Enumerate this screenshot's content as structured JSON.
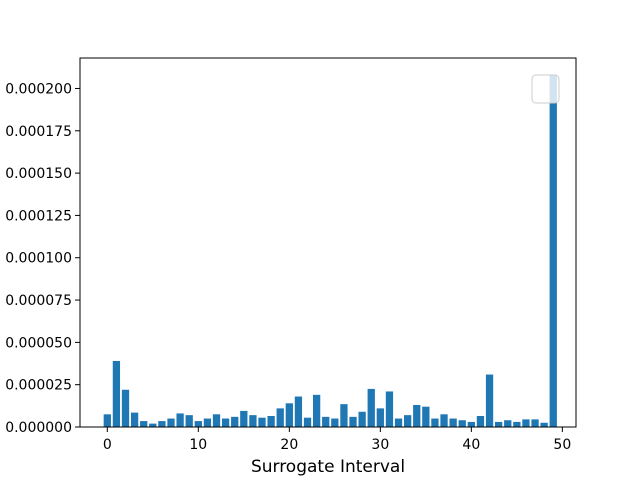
{
  "chart_data": {
    "type": "bar",
    "xlabel": "Surrogate Interval",
    "ylabel": "",
    "title": "",
    "xlim": [
      -3,
      51.5
    ],
    "ylim": [
      0,
      0.000218
    ],
    "xticks": [
      0,
      10,
      20,
      30,
      40,
      50
    ],
    "xtick_labels": [
      "0",
      "10",
      "20",
      "30",
      "40",
      "50"
    ],
    "yticks": [
      0,
      2.5e-05,
      5e-05,
      7.5e-05,
      0.0001,
      0.000125,
      0.00015,
      0.000175,
      0.0002
    ],
    "ytick_labels": [
      "0.000000",
      "0.000025",
      "0.000050",
      "0.000075",
      "0.000100",
      "0.000125",
      "0.000150",
      "0.000175",
      "0.000200"
    ],
    "grid": false,
    "legend": {
      "placement": "top-right",
      "entries": []
    },
    "bar_color": "#1f77b4",
    "x": [
      0,
      1,
      2,
      3,
      4,
      5,
      6,
      7,
      8,
      9,
      10,
      11,
      12,
      13,
      14,
      15,
      16,
      17,
      18,
      19,
      20,
      21,
      22,
      23,
      24,
      25,
      26,
      27,
      28,
      29,
      30,
      31,
      32,
      33,
      34,
      35,
      36,
      37,
      38,
      39,
      40,
      41,
      42,
      43,
      44,
      45,
      46,
      47,
      48,
      49
    ],
    "values": [
      7.5e-06,
      3.9e-05,
      2.2e-05,
      8.5e-06,
      3.5e-06,
      2e-06,
      3.5e-06,
      5e-06,
      8e-06,
      7e-06,
      3.5e-06,
      5e-06,
      7.5e-06,
      5e-06,
      6e-06,
      9.5e-06,
      7e-06,
      5.5e-06,
      6.5e-06,
      1.1e-05,
      1.4e-05,
      1.8e-05,
      5.5e-06,
      1.9e-05,
      6e-06,
      5e-06,
      1.35e-05,
      6e-06,
      9e-06,
      2.25e-05,
      1.1e-05,
      2.1e-05,
      5e-06,
      7e-06,
      1.3e-05,
      1.2e-05,
      5e-06,
      7.5e-06,
      5e-06,
      4e-06,
      3e-06,
      6.5e-06,
      3.1e-05,
      3e-06,
      4e-06,
      3e-06,
      4.5e-06,
      4.5e-06,
      2.5e-06,
      0.000208
    ]
  }
}
